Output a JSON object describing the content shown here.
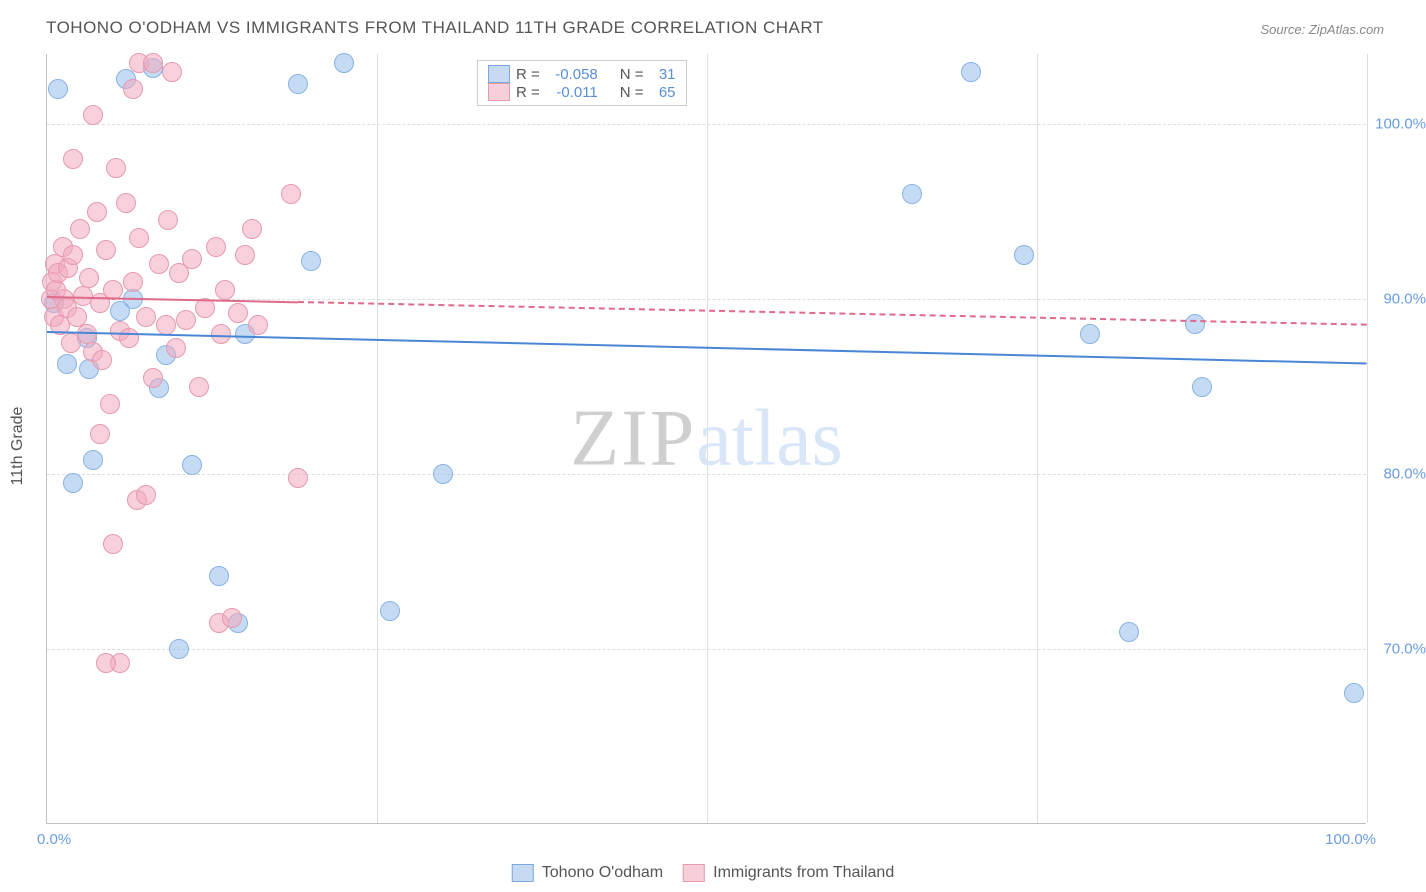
{
  "title": "TOHONO O'ODHAM VS IMMIGRANTS FROM THAILAND 11TH GRADE CORRELATION CHART",
  "source": "Source: ZipAtlas.com",
  "ylabel": "11th Grade",
  "watermark": {
    "part1": "ZIP",
    "part2": "atlas"
  },
  "chart": {
    "type": "scatter",
    "xlim": [
      0,
      100
    ],
    "ylim": [
      60,
      104
    ],
    "yticks": [
      {
        "v": 70,
        "label": "70.0%"
      },
      {
        "v": 80,
        "label": "80.0%"
      },
      {
        "v": 90,
        "label": "90.0%"
      },
      {
        "v": 100,
        "label": "100.0%"
      }
    ],
    "xgrid_at": [
      25,
      50,
      75,
      100
    ],
    "xtick_labels": {
      "left": "0.0%",
      "right": "100.0%"
    },
    "background_color": "#ffffff",
    "grid_color": "#dddddd",
    "axis_color": "#c0c0c0"
  },
  "legend_top": {
    "rows": [
      {
        "color_fill": "#c8daf2",
        "color_stroke": "#7ca8e0",
        "r_label": "R = ",
        "r_val": "-0.058",
        "n_label": "N = ",
        "n_val": "31"
      },
      {
        "color_fill": "#f6cfd8",
        "color_stroke": "#e79aae",
        "r_label": "R = ",
        "r_val": "-0.011",
        "n_label": "N = ",
        "n_val": "65"
      }
    ],
    "val_color": "#5a8fd6"
  },
  "legend_bottom": {
    "items": [
      {
        "color_fill": "#c8daf2",
        "color_stroke": "#7ca8e0",
        "label": "Tohono O'odham"
      },
      {
        "color_fill": "#f6cfd8",
        "color_stroke": "#e79aae",
        "label": "Immigrants from Thailand"
      }
    ]
  },
  "series": [
    {
      "name": "Tohono O'odham",
      "marker_fill": "rgba(150,190,235,0.55)",
      "marker_stroke": "#8ab3e4",
      "marker_radius": 10,
      "trend": {
        "x1": 0,
        "y1": 88.2,
        "x2": 100,
        "y2": 86.4,
        "solid_to_x": 100,
        "color": "#4a86d6",
        "width": 2
      },
      "points": [
        [
          0.5,
          89.8
        ],
        [
          0.8,
          102.0
        ],
        [
          6.0,
          102.6
        ],
        [
          6.5,
          90.0
        ],
        [
          1.5,
          86.3
        ],
        [
          2.0,
          79.5
        ],
        [
          3.2,
          86.0
        ],
        [
          3.5,
          80.8
        ],
        [
          8.5,
          84.9
        ],
        [
          8.0,
          103.2
        ],
        [
          11.0,
          80.5
        ],
        [
          13.0,
          74.2
        ],
        [
          14.5,
          71.5
        ],
        [
          10.0,
          70.0
        ],
        [
          19.0,
          102.3
        ],
        [
          22.5,
          103.5
        ],
        [
          20.0,
          92.2
        ],
        [
          26.0,
          72.2
        ],
        [
          30.0,
          80.0
        ],
        [
          70.0,
          103.0
        ],
        [
          65.5,
          96.0
        ],
        [
          74.0,
          92.5
        ],
        [
          79.0,
          88.0
        ],
        [
          82.0,
          71.0
        ],
        [
          87.5,
          85.0
        ],
        [
          87.0,
          88.6
        ],
        [
          99.0,
          67.5
        ],
        [
          3.0,
          87.8
        ],
        [
          5.5,
          89.3
        ],
        [
          15.0,
          88.0
        ],
        [
          9.0,
          86.8
        ]
      ]
    },
    {
      "name": "Immigrants from Thailand",
      "marker_fill": "rgba(240,170,190,0.55)",
      "marker_stroke": "#e79aae",
      "marker_radius": 10,
      "trend": {
        "x1": 0,
        "y1": 90.2,
        "x2": 100,
        "y2": 88.6,
        "solid_to_x": 19,
        "color": "#e06a8a",
        "width": 2
      },
      "points": [
        [
          0.3,
          90.0
        ],
        [
          0.4,
          91.0
        ],
        [
          0.5,
          89.0
        ],
        [
          0.6,
          92.0
        ],
        [
          0.7,
          90.5
        ],
        [
          0.8,
          91.5
        ],
        [
          1.0,
          88.5
        ],
        [
          1.2,
          93.0
        ],
        [
          1.3,
          90.0
        ],
        [
          1.5,
          89.5
        ],
        [
          1.6,
          91.8
        ],
        [
          1.8,
          87.5
        ],
        [
          2.0,
          92.5
        ],
        [
          2.3,
          89.0
        ],
        [
          2.5,
          94.0
        ],
        [
          2.7,
          90.2
        ],
        [
          3.0,
          88.0
        ],
        [
          3.2,
          91.2
        ],
        [
          3.5,
          87.0
        ],
        [
          3.8,
          95.0
        ],
        [
          4.0,
          89.8
        ],
        [
          4.2,
          86.5
        ],
        [
          4.5,
          92.8
        ],
        [
          4.8,
          84.0
        ],
        [
          5.0,
          90.5
        ],
        [
          5.2,
          97.5
        ],
        [
          5.5,
          88.2
        ],
        [
          2.0,
          98.0
        ],
        [
          6.0,
          95.5
        ],
        [
          6.2,
          87.8
        ],
        [
          6.5,
          91.0
        ],
        [
          6.8,
          78.5
        ],
        [
          7.0,
          93.5
        ],
        [
          6.5,
          102.0
        ],
        [
          7.5,
          89.0
        ],
        [
          4.0,
          82.3
        ],
        [
          8.0,
          85.5
        ],
        [
          3.5,
          100.5
        ],
        [
          8.5,
          92.0
        ],
        [
          5.5,
          69.2
        ],
        [
          9.0,
          88.5
        ],
        [
          9.2,
          94.5
        ],
        [
          4.5,
          69.2
        ],
        [
          9.8,
          87.2
        ],
        [
          10.0,
          91.5
        ],
        [
          9.5,
          103.0
        ],
        [
          10.5,
          88.8
        ],
        [
          7.0,
          103.5
        ],
        [
          11.0,
          92.3
        ],
        [
          5.0,
          76.0
        ],
        [
          11.5,
          85.0
        ],
        [
          13.0,
          71.5
        ],
        [
          12.0,
          89.5
        ],
        [
          7.5,
          78.8
        ],
        [
          12.8,
          93.0
        ],
        [
          8.0,
          103.5
        ],
        [
          13.2,
          88.0
        ],
        [
          13.5,
          90.5
        ],
        [
          15.5,
          94.0
        ],
        [
          14.0,
          71.8
        ],
        [
          14.5,
          89.2
        ],
        [
          15.0,
          92.5
        ],
        [
          18.5,
          96.0
        ],
        [
          16.0,
          88.5
        ],
        [
          19.0,
          79.8
        ]
      ]
    }
  ]
}
